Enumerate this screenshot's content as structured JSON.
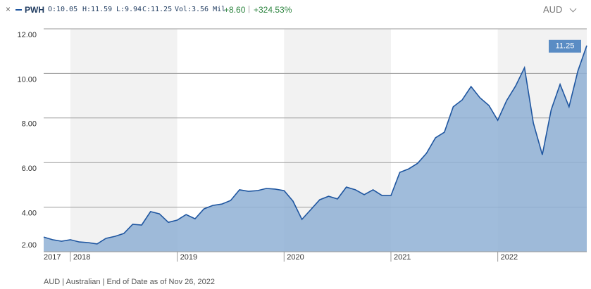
{
  "chart_data": {
    "type": "area",
    "header": {
      "symbol": "PWH",
      "open_label": "O:",
      "open": "10.05",
      "high_label": "H:",
      "high": "11.59",
      "low_label": "L:",
      "low": "9.94",
      "close_label": "C:",
      "close": "11.25",
      "vol_label": "Vol:",
      "vol": "3.56 Mil",
      "change": "+8.60",
      "change_pct": "+324.53%",
      "currency": "AUD"
    },
    "footnote": "AUD | Australian | End of Date as of Nov 26, 2022",
    "x": [
      2017.75,
      2017.833,
      2017.917,
      2018,
      2018.083,
      2018.167,
      2018.25,
      2018.333,
      2018.417,
      2018.5,
      2018.583,
      2018.667,
      2018.75,
      2018.833,
      2018.917,
      2019,
      2019.083,
      2019.167,
      2019.25,
      2019.333,
      2019.417,
      2019.5,
      2019.583,
      2019.667,
      2019.75,
      2019.833,
      2019.917,
      2020,
      2020.083,
      2020.167,
      2020.25,
      2020.333,
      2020.417,
      2020.5,
      2020.583,
      2020.667,
      2020.75,
      2020.833,
      2020.917,
      2021,
      2021.083,
      2021.167,
      2021.25,
      2021.333,
      2021.417,
      2021.5,
      2021.583,
      2021.667,
      2021.75,
      2021.833,
      2021.917,
      2022,
      2022.083,
      2022.167,
      2022.25,
      2022.333,
      2022.417,
      2022.5,
      2022.583,
      2022.667,
      2022.75,
      2022.833
    ],
    "values": [
      2.66,
      2.54,
      2.47,
      2.54,
      2.44,
      2.41,
      2.35,
      2.6,
      2.69,
      2.82,
      3.23,
      3.2,
      3.8,
      3.7,
      3.32,
      3.42,
      3.67,
      3.48,
      3.92,
      4.08,
      4.14,
      4.3,
      4.78,
      4.71,
      4.74,
      4.84,
      4.81,
      4.74,
      4.27,
      3.45,
      3.89,
      4.33,
      4.49,
      4.37,
      4.9,
      4.78,
      4.56,
      4.78,
      4.52,
      4.52,
      5.56,
      5.72,
      5.97,
      6.42,
      7.11,
      7.36,
      8.5,
      8.81,
      9.41,
      8.91,
      8.56,
      7.9,
      8.78,
      9.44,
      10.26,
      7.77,
      6.35,
      8.37,
      9.51,
      8.5,
      10.11,
      11.25
    ],
    "line_color": "#1f56a0",
    "fill_color": "#8fb0d5",
    "xlim": [
      2017.75,
      2022.833
    ],
    "xticks": [
      {
        "value": 2017.75,
        "label": "2017"
      },
      2018,
      2019,
      2020,
      2021,
      2022
    ],
    "ylim": [
      2,
      12
    ],
    "yticks": [
      {
        "value": 2,
        "label": "2.00"
      },
      {
        "value": 4,
        "label": "4.00"
      },
      {
        "value": 6,
        "label": "6.00"
      },
      {
        "value": 8,
        "label": "8.00"
      },
      {
        "value": 10,
        "label": "10.00"
      },
      {
        "value": 12,
        "label": "12.00"
      }
    ],
    "grid": true
  }
}
